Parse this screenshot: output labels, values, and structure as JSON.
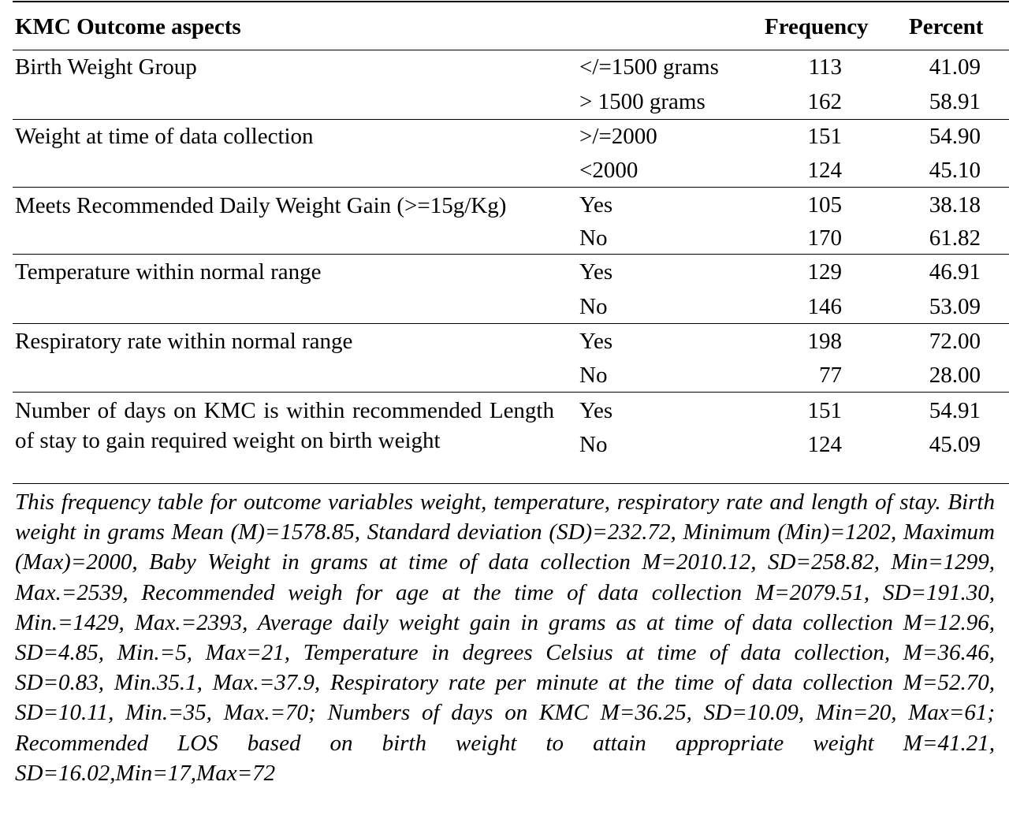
{
  "table": {
    "headers": {
      "aspect": "KMC Outcome aspects",
      "frequency": "Frequency",
      "percent": "Percent"
    },
    "groups": [
      {
        "label": "Birth Weight Group",
        "rows": [
          {
            "category": "</=1500 grams",
            "frequency": "113",
            "percent": "41.09"
          },
          {
            "category": "> 1500 grams",
            "frequency": "162",
            "percent": "58.91"
          }
        ]
      },
      {
        "label": "Weight at time of data collection",
        "rows": [
          {
            "category": ">/=2000",
            "frequency": "151",
            "percent": "54.90"
          },
          {
            "category": "<2000",
            "frequency": "124",
            "percent": "45.10"
          }
        ]
      },
      {
        "label": "Meets Recommended Daily Weight Gain (>=15g/Kg)",
        "rows": [
          {
            "category": "Yes",
            "frequency": "105",
            "percent": "38.18"
          },
          {
            "category": "No",
            "frequency": "170",
            "percent": "61.82"
          }
        ]
      },
      {
        "label": "Temperature within normal range",
        "rows": [
          {
            "category": "Yes",
            "frequency": "129",
            "percent": "46.91"
          },
          {
            "category": "No",
            "frequency": "146",
            "percent": "53.09"
          }
        ]
      },
      {
        "label": "Respiratory rate within normal range",
        "rows": [
          {
            "category": "Yes",
            "frequency": "198",
            "percent": "72.00"
          },
          {
            "category": "No",
            "frequency": "77",
            "percent": "28.00"
          }
        ]
      },
      {
        "label": "Number of days on KMC is within recommended Length of stay to gain required weight on birth weight",
        "rows": [
          {
            "category": "Yes",
            "frequency": "151",
            "percent": "54.91"
          },
          {
            "category": "No",
            "frequency": "124",
            "percent": "45.09"
          }
        ]
      }
    ],
    "footnote": "This frequency table for outcome variables weight, temperature, respiratory rate and length of stay. Birth weight in grams Mean (M)=1578.85, Standard deviation (SD)=232.72, Minimum (Min)=1202, Maximum (Max)=2000, Baby Weight in grams at time of data collection M=2010.12, SD=258.82, Min=1299, Max.=2539, Recommended weigh for age at the time of data collection M=2079.51, SD=191.30, Min.=1429, Max.=2393, Average daily weight gain in grams as at time of data collection M=12.96, SD=4.85, Min.=5, Max=21, Temperature in degrees Celsius at time of data collection, M=36.46, SD=0.83, Min.35.1, Max.=37.9, Respiratory rate per minute at the time of data collection M=52.70, SD=10.11, Min.=35, Max.=70; Numbers of days on KMC M=36.25, SD=10.09, Min=20, Max=61; Recommended LOS based on birth weight to attain appropriate weight M=41.21, SD=16.02,Min=17,Max=72"
  }
}
